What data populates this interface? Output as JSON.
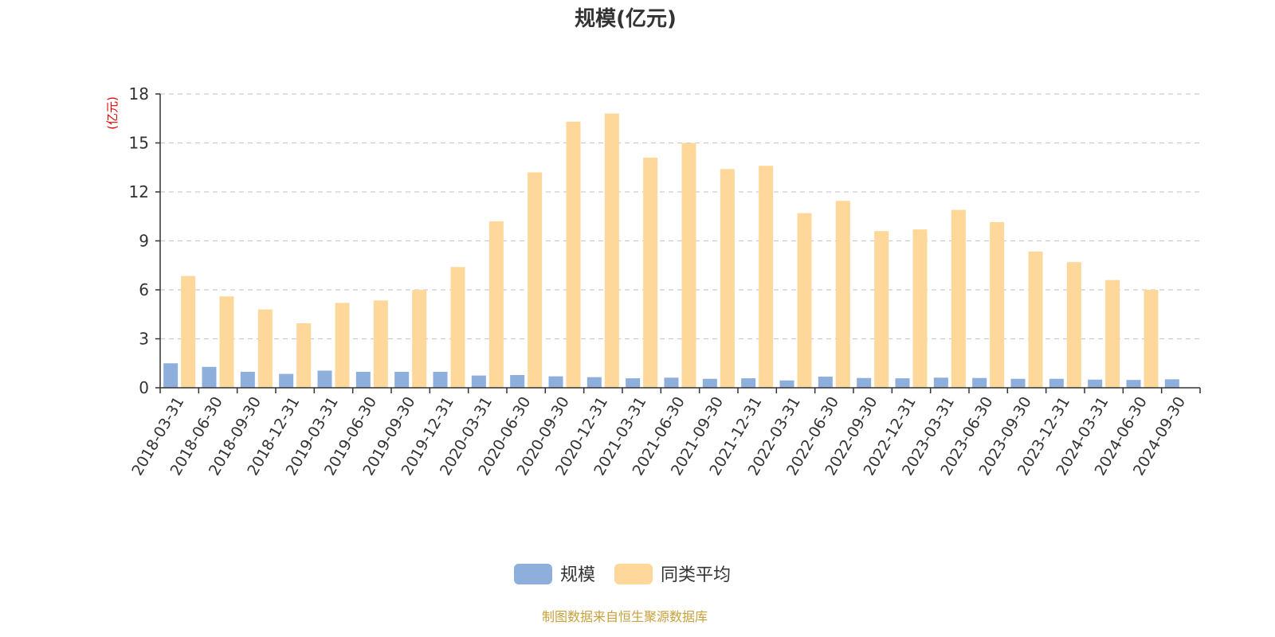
{
  "chart_data": {
    "type": "bar",
    "title": "规模(亿元)",
    "y_unit_label": "(亿元)",
    "ylim": [
      0,
      18
    ],
    "yticks": [
      "0",
      "3",
      "6",
      "9",
      "12",
      "15",
      "18"
    ],
    "grid": true,
    "legend_position": "bottom",
    "categories": [
      "2018-03-31",
      "2018-06-30",
      "2018-09-30",
      "2018-12-31",
      "2019-03-31",
      "2019-06-30",
      "2019-09-30",
      "2019-12-31",
      "2020-03-31",
      "2020-06-30",
      "2020-09-30",
      "2020-12-31",
      "2021-03-31",
      "2021-06-30",
      "2021-09-30",
      "2021-12-31",
      "2022-03-31",
      "2022-06-30",
      "2022-09-30",
      "2022-12-31",
      "2023-03-31",
      "2023-06-30",
      "2023-09-30",
      "2023-12-31",
      "2024-03-31",
      "2024-06-30",
      "2024-09-30"
    ],
    "series": [
      {
        "name": "规模",
        "color": "#8eaedc",
        "values": [
          1.5,
          1.28,
          0.98,
          0.85,
          1.05,
          0.98,
          0.98,
          0.98,
          0.75,
          0.78,
          0.7,
          0.65,
          0.58,
          0.62,
          0.55,
          0.58,
          0.45,
          0.68,
          0.6,
          0.58,
          0.62,
          0.6,
          0.55,
          0.55,
          0.5,
          0.48,
          0.52
        ]
      },
      {
        "name": "同类平均",
        "color": "#fdd89a",
        "values": [
          6.85,
          5.6,
          4.8,
          3.95,
          5.2,
          5.35,
          6.0,
          7.4,
          10.2,
          13.2,
          16.3,
          16.8,
          14.1,
          15.0,
          13.4,
          13.6,
          10.7,
          11.45,
          9.6,
          9.7,
          10.9,
          10.15,
          8.35,
          7.7,
          6.6,
          6.0,
          null
        ]
      }
    ]
  },
  "footer": {
    "source": "制图数据来自恒生聚源数据库"
  }
}
